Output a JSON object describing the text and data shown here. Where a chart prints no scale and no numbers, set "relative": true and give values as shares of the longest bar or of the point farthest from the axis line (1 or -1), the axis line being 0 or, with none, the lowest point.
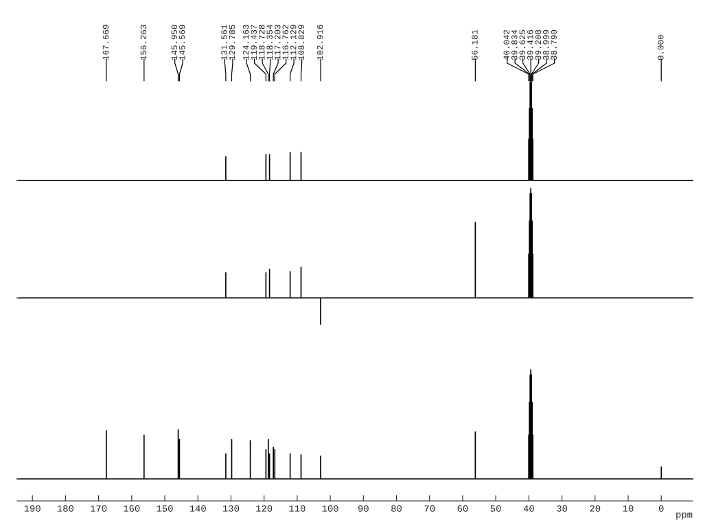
{
  "chart_data": [
    {
      "type": "line",
      "relative": true,
      "tick_labels": false,
      "xlim": [
        194.6,
        -9.5
      ],
      "annotations": [
        "167.669",
        "156.263",
        "145.950",
        "145.569",
        "131.561",
        "129.785",
        "124.163",
        "119.437",
        "118.728",
        "118.354",
        "117.203",
        "116.762",
        "112.129",
        "108.829",
        "102.916",
        "56.181",
        "40.042",
        "39.834",
        "39.625",
        "39.416",
        "39.208",
        "38.999",
        "38.790",
        "0.000"
      ],
      "series": [
        {
          "color": "#000000",
          "x": [
            194,
            131.561,
            131.561,
            131.561,
            119.437,
            119.437,
            119.437,
            118.354,
            118.354,
            118.354,
            112.129,
            112.129,
            112.129,
            108.829,
            108.829,
            108.829,
            40.042,
            40.042,
            40.042,
            39.834,
            39.834,
            39.834,
            39.625,
            39.625,
            39.625,
            39.416,
            39.416,
            39.416,
            39.208,
            39.208,
            39.208,
            38.999,
            38.999,
            38.999,
            38.79,
            38.79,
            38.79,
            -9.5
          ],
          "values": [
            0,
            0,
            0.23,
            0,
            0,
            0.25,
            0,
            0,
            0.25,
            0,
            0,
            0.27,
            0,
            0,
            0.27,
            0,
            0,
            0.4,
            0,
            0,
            0.7,
            0,
            0,
            0.95,
            0,
            0,
            1,
            0,
            0,
            0.95,
            0,
            0,
            0.7,
            0,
            0,
            0.4,
            0,
            0
          ]
        }
      ]
    },
    {
      "type": "line",
      "relative": true,
      "tick_labels": false,
      "xlim": [
        194.6,
        -9.5
      ],
      "series": [
        {
          "color": "#000000",
          "x": [
            194,
            131.561,
            131.561,
            131.561,
            119.437,
            119.437,
            119.437,
            118.354,
            118.354,
            118.354,
            112.129,
            112.129,
            112.129,
            108.829,
            108.829,
            108.829,
            102.916,
            102.916,
            102.916,
            56.181,
            56.181,
            56.181,
            40.042,
            40.042,
            40.042,
            39.834,
            39.834,
            39.834,
            39.625,
            39.625,
            39.625,
            39.416,
            39.416,
            39.416,
            39.208,
            39.208,
            39.208,
            38.999,
            38.999,
            38.999,
            38.79,
            38.79,
            38.79,
            -9.5
          ],
          "values": [
            0,
            0,
            0.23,
            0,
            0,
            0.23,
            0,
            0,
            0.26,
            0,
            0,
            0.24,
            0,
            0,
            0.28,
            0,
            0,
            -0.24,
            0,
            0,
            0.69,
            0,
            0,
            0.4,
            0,
            0,
            0.7,
            0,
            0,
            0.95,
            0,
            0,
            1,
            0,
            0,
            0.95,
            0,
            0,
            0.7,
            0,
            0,
            0.4,
            0,
            0
          ]
        }
      ]
    },
    {
      "type": "line",
      "relative": true,
      "tick_labels": "x",
      "xlim": [
        194.6,
        -9.5
      ],
      "xlabel": "ppm",
      "xticks": [
        190,
        180,
        170,
        160,
        150,
        140,
        130,
        120,
        110,
        100,
        90,
        80,
        70,
        60,
        50,
        40,
        30,
        20,
        10,
        0
      ],
      "series": [
        {
          "color": "#000000",
          "x": [
            194,
            167.669,
            167.669,
            167.669,
            156.263,
            156.263,
            156.263,
            145.95,
            145.95,
            145.95,
            145.569,
            145.569,
            145.569,
            131.561,
            131.561,
            131.561,
            129.785,
            129.785,
            129.785,
            124.163,
            124.163,
            124.163,
            119.437,
            119.437,
            119.437,
            118.728,
            118.728,
            118.728,
            118.354,
            118.354,
            118.354,
            117.203,
            117.203,
            117.203,
            116.762,
            116.762,
            116.762,
            112.129,
            112.129,
            112.129,
            108.829,
            108.829,
            108.829,
            102.916,
            102.916,
            102.916,
            56.181,
            56.181,
            56.181,
            40.042,
            40.042,
            40.042,
            39.834,
            39.834,
            39.834,
            39.625,
            39.625,
            39.625,
            39.416,
            39.416,
            39.416,
            39.208,
            39.208,
            39.208,
            38.999,
            38.999,
            38.999,
            38.79,
            38.79,
            38.79,
            0,
            0,
            0,
            -9.5
          ],
          "values": [
            0,
            0,
            0.44,
            0,
            0,
            0.4,
            0,
            0,
            0.45,
            0,
            0,
            0.36,
            0,
            0,
            0.23,
            0,
            0,
            0.36,
            0,
            0,
            0.35,
            0,
            0,
            0.27,
            0,
            0,
            0.36,
            0,
            0,
            0.23,
            0,
            0,
            0.29,
            0,
            0,
            0.27,
            0,
            0,
            0.23,
            0,
            0,
            0.22,
            0,
            0,
            0.21,
            0,
            0,
            0.43,
            0,
            0,
            0.4,
            0,
            0,
            0.7,
            0,
            0,
            0.95,
            0,
            0,
            1,
            0,
            0,
            0.95,
            0,
            0,
            0.7,
            0,
            0,
            0.4,
            0,
            0,
            0.11,
            0,
            0
          ]
        }
      ]
    }
  ]
}
